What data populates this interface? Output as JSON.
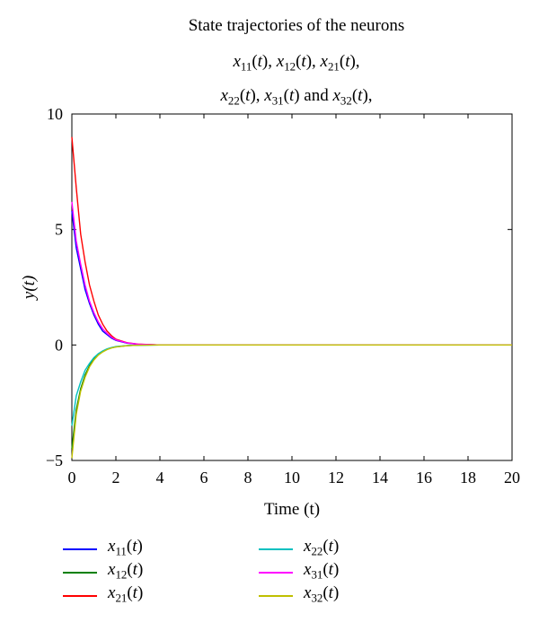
{
  "title": {
    "line1": "State trajectories of the neurons",
    "line2": [
      "x11(t),",
      "x12(t),",
      "x21(t),"
    ],
    "line3": [
      "x22(t),",
      "x31(t)",
      "and",
      "x32(t),"
    ]
  },
  "chart_data": {
    "type": "line",
    "title": "State trajectories of the neurons x11(t), x12(t), x21(t), x22(t), x31(t) and x32(t),",
    "xlabel": "Time (t)",
    "ylabel": "y(t)",
    "xlim": [
      0,
      20
    ],
    "ylim": [
      -5,
      10
    ],
    "xticks": [
      0,
      2,
      4,
      6,
      8,
      10,
      12,
      14,
      16,
      18,
      20
    ],
    "yticks": [
      -5,
      0,
      5,
      10
    ],
    "grid": false,
    "legend_position": "bottom",
    "x": [
      0,
      0.2,
      0.4,
      0.6,
      0.8,
      1.0,
      1.2,
      1.4,
      1.6,
      1.8,
      2.0,
      2.5,
      3.0,
      4.0,
      6.0,
      8.0,
      10.0,
      12.0,
      14.0,
      16.0,
      18.0,
      20.0
    ],
    "series": [
      {
        "name": "x11(t)",
        "color": "#0000ff",
        "values": [
          5.8,
          4.2,
          3.3,
          2.4,
          1.8,
          1.3,
          0.9,
          0.6,
          0.45,
          0.3,
          0.2,
          0.08,
          0.03,
          0.0,
          0,
          0,
          0,
          0,
          0,
          0,
          0,
          0
        ]
      },
      {
        "name": "x12(t)",
        "color": "#008000",
        "values": [
          -4.5,
          -2.8,
          -1.9,
          -1.3,
          -0.9,
          -0.6,
          -0.4,
          -0.28,
          -0.18,
          -0.12,
          -0.08,
          -0.03,
          -0.01,
          0,
          0,
          0,
          0,
          0,
          0,
          0,
          0,
          0
        ]
      },
      {
        "name": "x21(t)",
        "color": "#ff0000",
        "values": [
          9.0,
          6.8,
          4.8,
          3.6,
          2.6,
          1.9,
          1.3,
          0.9,
          0.6,
          0.4,
          0.25,
          0.1,
          0.04,
          0.0,
          0,
          0,
          0,
          0,
          0,
          0,
          0,
          0
        ]
      },
      {
        "name": "x22(t)",
        "color": "#00c0c0",
        "values": [
          -3.5,
          -2.2,
          -1.6,
          -1.1,
          -0.8,
          -0.55,
          -0.38,
          -0.26,
          -0.17,
          -0.11,
          -0.07,
          -0.03,
          -0.01,
          0,
          0,
          0,
          0,
          0,
          0,
          0,
          0,
          0
        ]
      },
      {
        "name": "x31(t)",
        "color": "#ff00ff",
        "values": [
          6.2,
          4.5,
          3.5,
          2.6,
          1.9,
          1.4,
          1.0,
          0.7,
          0.5,
          0.34,
          0.22,
          0.09,
          0.035,
          0.0,
          0,
          0,
          0,
          0,
          0,
          0,
          0,
          0
        ]
      },
      {
        "name": "x32(t)",
        "color": "#c0c000",
        "values": [
          -4.9,
          -3.0,
          -2.0,
          -1.4,
          -0.95,
          -0.65,
          -0.44,
          -0.3,
          -0.2,
          -0.13,
          -0.09,
          -0.035,
          -0.012,
          0,
          0,
          0,
          0,
          0,
          0,
          0,
          0,
          0
        ]
      }
    ]
  },
  "legend": {
    "col1": [
      {
        "label": "x11(t)",
        "color": "#0000ff"
      },
      {
        "label": "x12(t)",
        "color": "#008000"
      },
      {
        "label": "x21(t)",
        "color": "#ff0000"
      }
    ],
    "col2": [
      {
        "label": "x22(t)",
        "color": "#00c0c0"
      },
      {
        "label": "x31(t)",
        "color": "#ff00ff"
      },
      {
        "label": "x32(t)",
        "color": "#c0c000"
      }
    ]
  }
}
